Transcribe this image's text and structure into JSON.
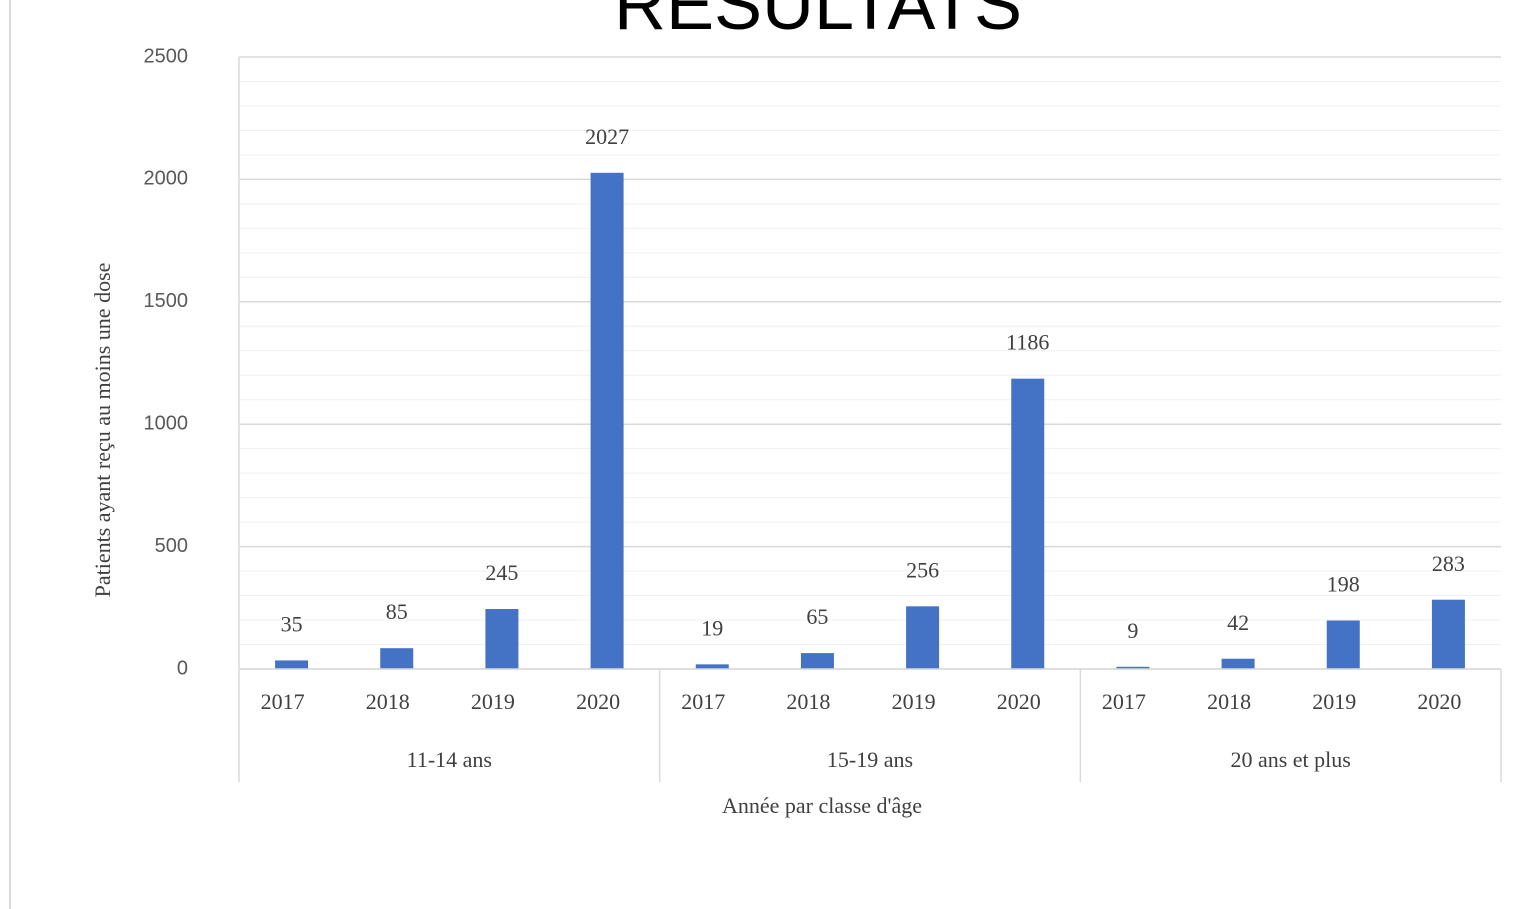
{
  "chart_data": {
    "type": "bar",
    "title": "RESULTATS",
    "x_label": "Année par classe d'âge",
    "y_label": "Patients ayant reçu au moins une dose",
    "color": "#4472c4",
    "groups": [
      {
        "name": "11-14 ans",
        "categories": [
          "2017",
          "2018",
          "2019",
          "2020"
        ],
        "values": [
          35,
          85,
          245,
          2027
        ]
      },
      {
        "name": "15-19 ans",
        "categories": [
          "2017",
          "2018",
          "2019",
          "2020"
        ],
        "values": [
          19,
          65,
          256,
          1186
        ]
      },
      {
        "name": "20 ans et plus",
        "categories": [
          "2017",
          "2018",
          "2019",
          "2020"
        ],
        "values": [
          9,
          42,
          198,
          283
        ]
      }
    ],
    "ylim": [
      0,
      2500
    ],
    "yticks": [
      0,
      500,
      1000,
      1500,
      2000,
      2500
    ],
    "minor_yticks": [
      100,
      200,
      300,
      400,
      600,
      700,
      800,
      900,
      1100,
      1200,
      1300,
      1400,
      1600,
      1700,
      1800,
      1900,
      2100,
      2200,
      2300,
      2400
    ],
    "grid": true
  }
}
